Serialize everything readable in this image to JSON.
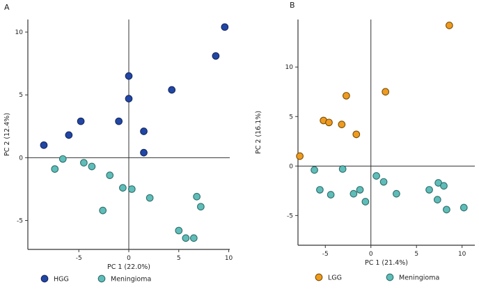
{
  "figure": {
    "background_color": "#ffffff",
    "panel_a_label": "A",
    "panel_b_label": "B"
  },
  "chart_data": [
    {
      "type": "scatter",
      "panel_label": "A",
      "title": "",
      "xlabel": "PC 1 (22.0%)",
      "ylabel": "PC 2 (12.4%)",
      "xlim": [
        -10.1,
        10.1
      ],
      "ylim": [
        -7.3,
        11.0
      ],
      "xticks": [
        -5,
        0,
        5,
        10
      ],
      "yticks": [
        -5,
        0,
        5,
        10
      ],
      "grid": false,
      "zero_lines": true,
      "legend_position": "bottom",
      "series": [
        {
          "name": "HGG",
          "color": "#2146a5",
          "edge_color": "#14285e",
          "points": [
            [
              -8.5,
              1.0
            ],
            [
              -6.0,
              1.8
            ],
            [
              -4.8,
              2.9
            ],
            [
              -1.0,
              2.9
            ],
            [
              0.0,
              6.5
            ],
            [
              0.0,
              4.7
            ],
            [
              1.5,
              2.1
            ],
            [
              1.5,
              0.4
            ],
            [
              4.3,
              5.4
            ],
            [
              8.7,
              8.1
            ],
            [
              9.6,
              10.4
            ]
          ]
        },
        {
          "name": "Meningioma",
          "color": "#5fbdb9",
          "edge_color": "#2e6e6b",
          "points": [
            [
              -7.4,
              -0.9
            ],
            [
              -6.6,
              -0.1
            ],
            [
              -4.5,
              -0.4
            ],
            [
              -3.7,
              -0.7
            ],
            [
              -2.6,
              -4.2
            ],
            [
              -1.9,
              -1.4
            ],
            [
              -0.6,
              -2.4
            ],
            [
              0.3,
              -2.5
            ],
            [
              2.1,
              -3.2
            ],
            [
              5.0,
              -5.8
            ],
            [
              5.7,
              -6.4
            ],
            [
              6.5,
              -6.4
            ],
            [
              6.8,
              -3.1
            ],
            [
              7.2,
              -3.9
            ]
          ]
        }
      ]
    },
    {
      "type": "scatter",
      "panel_label": "B",
      "title": "",
      "xlabel": "PC 1 (21.4%)",
      "ylabel": "PC 2 (16.1%)",
      "xlim": [
        -8.0,
        11.4
      ],
      "ylim": [
        -8.0,
        14.8
      ],
      "xticks": [
        -5,
        0,
        5,
        10
      ],
      "yticks": [
        -5,
        0,
        5,
        10
      ],
      "grid": false,
      "zero_lines": true,
      "legend_position": "bottom",
      "series": [
        {
          "name": "LGG",
          "color": "#ef9b20",
          "edge_color": "#7a4e05",
          "points": [
            [
              -7.8,
              1.0
            ],
            [
              -5.2,
              4.6
            ],
            [
              -4.6,
              4.4
            ],
            [
              -3.2,
              4.2
            ],
            [
              -2.7,
              7.1
            ],
            [
              -1.6,
              3.2
            ],
            [
              1.6,
              7.5
            ],
            [
              8.6,
              14.2
            ]
          ]
        },
        {
          "name": "Meningioma",
          "color": "#5fbdb9",
          "edge_color": "#2e6e6b",
          "points": [
            [
              -6.2,
              -0.4
            ],
            [
              -5.6,
              -2.4
            ],
            [
              -4.4,
              -2.9
            ],
            [
              -3.1,
              -0.3
            ],
            [
              -1.9,
              -2.8
            ],
            [
              -1.2,
              -2.4
            ],
            [
              -0.6,
              -3.6
            ],
            [
              0.6,
              -1.0
            ],
            [
              1.4,
              -1.6
            ],
            [
              2.8,
              -2.8
            ],
            [
              6.4,
              -2.4
            ],
            [
              7.4,
              -1.7
            ],
            [
              7.3,
              -3.4
            ],
            [
              8.0,
              -2.0
            ],
            [
              8.3,
              -4.4
            ],
            [
              10.2,
              -4.2
            ]
          ]
        }
      ]
    }
  ]
}
